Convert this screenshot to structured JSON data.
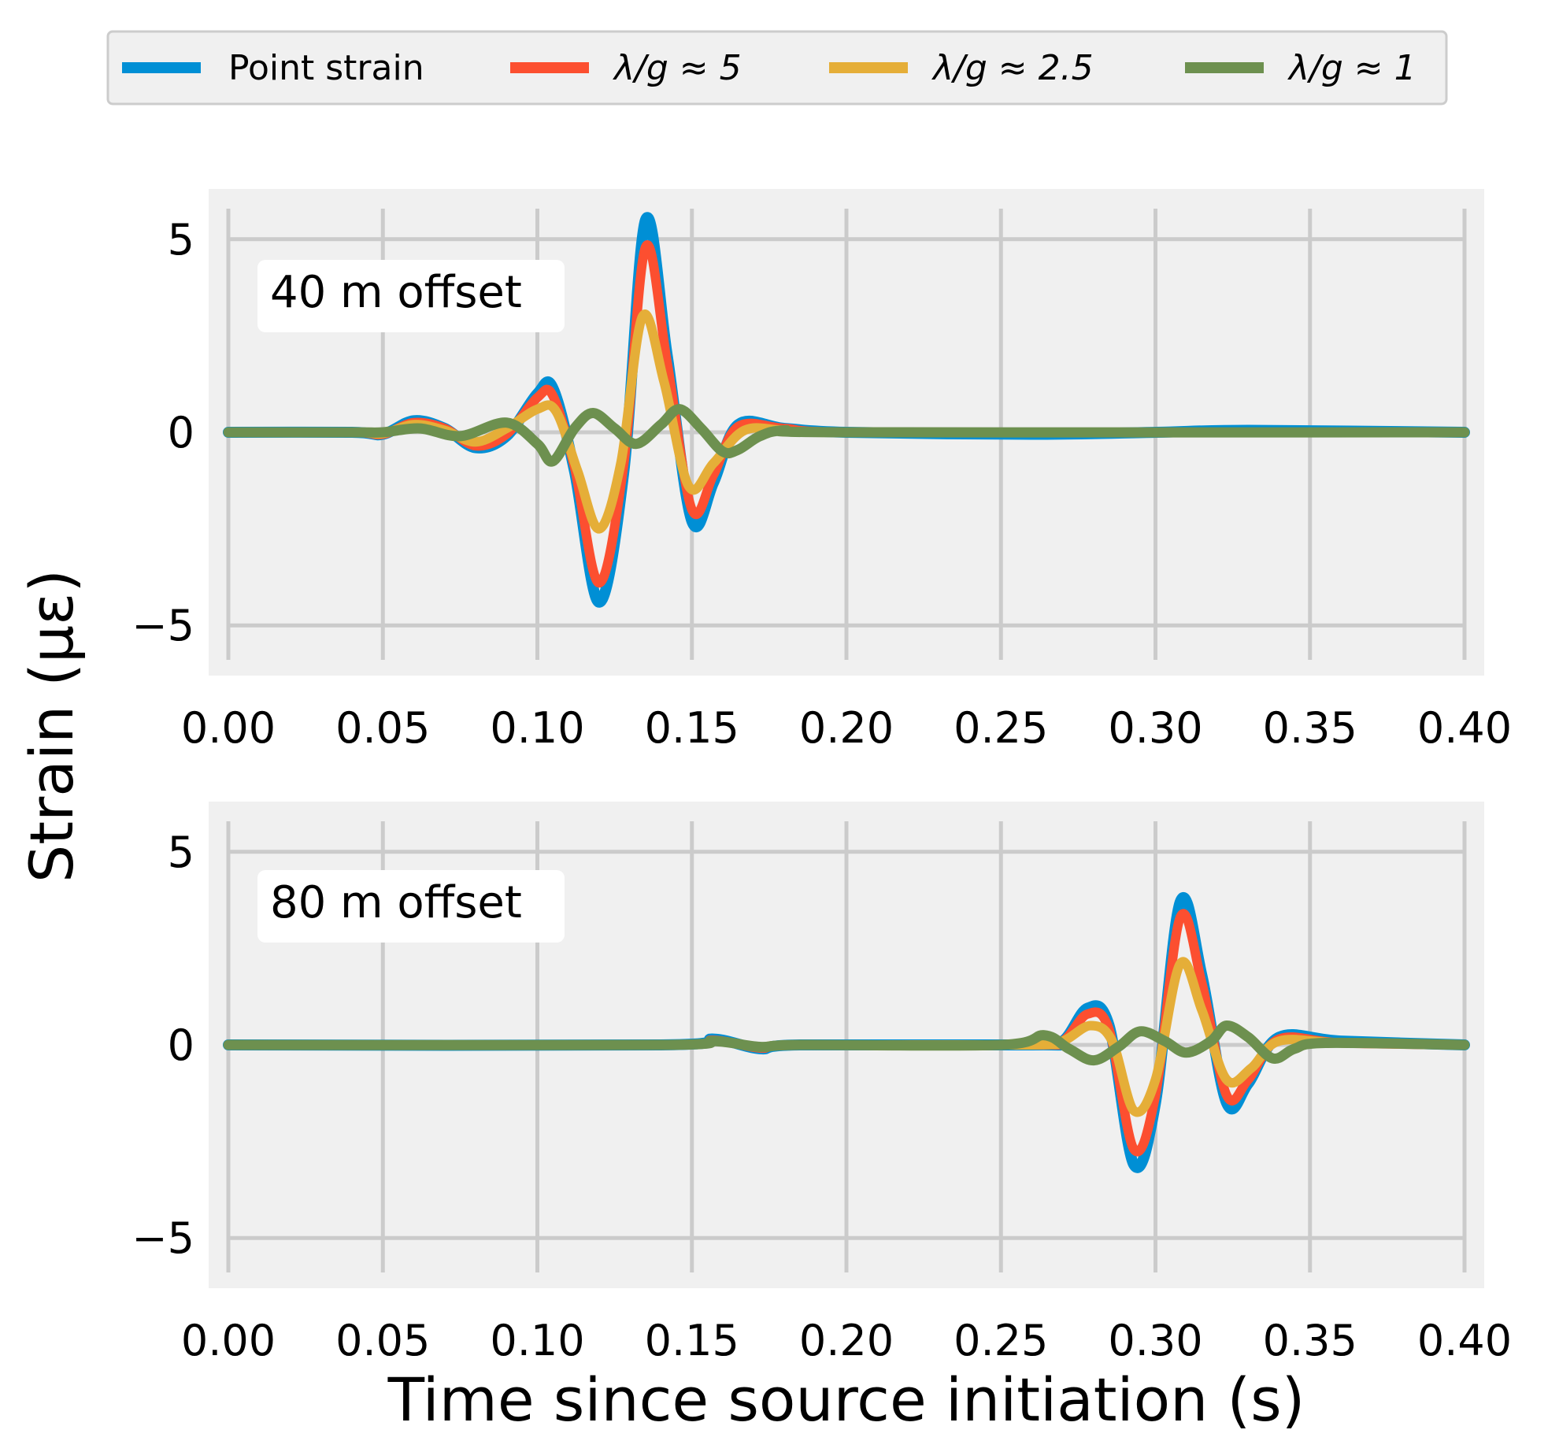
{
  "chart_data": [
    {
      "type": "line",
      "panel": "top",
      "annotation": "40 m offset",
      "xlim": [
        0,
        0.4
      ],
      "ylim": [
        -6.3,
        6.3
      ],
      "xticks": [
        0.0,
        0.05,
        0.1,
        0.15,
        0.2,
        0.25,
        0.3,
        0.35,
        0.4
      ],
      "xtick_labels": [
        "0.00",
        "0.05",
        "0.10",
        "0.15",
        "0.20",
        "0.25",
        "0.30",
        "0.35",
        "0.40"
      ],
      "yticks": [
        5,
        0,
        -5
      ],
      "ytick_labels": [
        "5",
        "0",
        "−5"
      ],
      "grid": true,
      "series": [
        {
          "name": "Point strain",
          "points": [
            [
              0,
              0
            ],
            [
              0.04,
              0
            ],
            [
              0.05,
              -0.05
            ],
            [
              0.06,
              0.3
            ],
            [
              0.07,
              0.1
            ],
            [
              0.08,
              -0.4
            ],
            [
              0.09,
              -0.1
            ],
            [
              0.1,
              1.0
            ],
            [
              0.105,
              1.15
            ],
            [
              0.112,
              -1.0
            ],
            [
              0.12,
              -4.4
            ],
            [
              0.128,
              -1.0
            ],
            [
              0.135,
              5.5
            ],
            [
              0.142,
              2.0
            ],
            [
              0.15,
              -2.3
            ],
            [
              0.157,
              -1.3
            ],
            [
              0.165,
              0.2
            ],
            [
              0.18,
              0.1
            ],
            [
              0.2,
              0
            ],
            [
              0.26,
              -0.05
            ],
            [
              0.3,
              0
            ],
            [
              0.33,
              0.05
            ],
            [
              0.4,
              0
            ]
          ]
        },
        {
          "name": "λ/g ≈ 5",
          "points": [
            [
              0,
              0
            ],
            [
              0.04,
              0
            ],
            [
              0.05,
              -0.05
            ],
            [
              0.06,
              0.25
            ],
            [
              0.07,
              0.1
            ],
            [
              0.08,
              -0.35
            ],
            [
              0.09,
              -0.05
            ],
            [
              0.1,
              0.9
            ],
            [
              0.105,
              0.95
            ],
            [
              0.112,
              -0.9
            ],
            [
              0.12,
              -3.9
            ],
            [
              0.128,
              -0.8
            ],
            [
              0.135,
              4.8
            ],
            [
              0.142,
              1.8
            ],
            [
              0.15,
              -2.0
            ],
            [
              0.157,
              -1.1
            ],
            [
              0.165,
              0.15
            ],
            [
              0.18,
              0.1
            ],
            [
              0.2,
              0
            ],
            [
              0.3,
              0
            ],
            [
              0.4,
              0
            ]
          ]
        },
        {
          "name": "λ/g ≈ 2.5",
          "points": [
            [
              0,
              0
            ],
            [
              0.04,
              0
            ],
            [
              0.05,
              -0.03
            ],
            [
              0.06,
              0.2
            ],
            [
              0.07,
              0.05
            ],
            [
              0.08,
              -0.25
            ],
            [
              0.09,
              0.1
            ],
            [
              0.1,
              0.6
            ],
            [
              0.106,
              0.55
            ],
            [
              0.113,
              -1.0
            ],
            [
              0.12,
              -2.5
            ],
            [
              0.127,
              -0.8
            ],
            [
              0.134,
              3.0
            ],
            [
              0.141,
              1.3
            ],
            [
              0.149,
              -1.4
            ],
            [
              0.157,
              -0.8
            ],
            [
              0.167,
              0.05
            ],
            [
              0.18,
              0.05
            ],
            [
              0.2,
              0
            ],
            [
              0.4,
              0
            ]
          ]
        },
        {
          "name": "λ/g ≈ 1",
          "points": [
            [
              0,
              0
            ],
            [
              0.04,
              0
            ],
            [
              0.05,
              0
            ],
            [
              0.062,
              0.1
            ],
            [
              0.075,
              -0.1
            ],
            [
              0.09,
              0.25
            ],
            [
              0.1,
              -0.3
            ],
            [
              0.105,
              -0.75
            ],
            [
              0.112,
              0.1
            ],
            [
              0.118,
              0.5
            ],
            [
              0.125,
              0.1
            ],
            [
              0.132,
              -0.3
            ],
            [
              0.14,
              0.2
            ],
            [
              0.146,
              0.6
            ],
            [
              0.153,
              0.1
            ],
            [
              0.16,
              -0.5
            ],
            [
              0.165,
              -0.45
            ],
            [
              0.172,
              -0.1
            ],
            [
              0.18,
              0.05
            ],
            [
              0.2,
              0
            ],
            [
              0.4,
              0
            ]
          ]
        }
      ]
    },
    {
      "type": "line",
      "panel": "bottom",
      "annotation": "80 m offset",
      "xlim": [
        0,
        0.4
      ],
      "ylim": [
        -6.3,
        6.3
      ],
      "xticks": [
        0.0,
        0.05,
        0.1,
        0.15,
        0.2,
        0.25,
        0.3,
        0.35,
        0.4
      ],
      "xtick_labels": [
        "0.00",
        "0.05",
        "0.10",
        "0.15",
        "0.20",
        "0.25",
        "0.30",
        "0.35",
        "0.40"
      ],
      "yticks": [
        5,
        0,
        -5
      ],
      "ytick_labels": [
        "5",
        "0",
        "−5"
      ],
      "grid": true,
      "series": [
        {
          "name": "Point strain",
          "points": [
            [
              0,
              0
            ],
            [
              0.14,
              0
            ],
            [
              0.157,
              0.15
            ],
            [
              0.172,
              -0.1
            ],
            [
              0.185,
              0
            ],
            [
              0.26,
              0
            ],
            [
              0.27,
              0.1
            ],
            [
              0.278,
              0.95
            ],
            [
              0.285,
              0.5
            ],
            [
              0.293,
              -3.1
            ],
            [
              0.3,
              -1.5
            ],
            [
              0.308,
              3.7
            ],
            [
              0.315,
              1.8
            ],
            [
              0.323,
              -1.5
            ],
            [
              0.33,
              -1.0
            ],
            [
              0.34,
              0.2
            ],
            [
              0.36,
              0.1
            ],
            [
              0.4,
              0
            ]
          ]
        },
        {
          "name": "λ/g ≈ 5",
          "points": [
            [
              0,
              0
            ],
            [
              0.14,
              0
            ],
            [
              0.157,
              0.12
            ],
            [
              0.172,
              -0.08
            ],
            [
              0.185,
              0
            ],
            [
              0.26,
              0
            ],
            [
              0.27,
              0.1
            ],
            [
              0.278,
              0.8
            ],
            [
              0.285,
              0.4
            ],
            [
              0.293,
              -2.7
            ],
            [
              0.3,
              -1.3
            ],
            [
              0.308,
              3.3
            ],
            [
              0.315,
              1.6
            ],
            [
              0.323,
              -1.3
            ],
            [
              0.33,
              -0.9
            ],
            [
              0.34,
              0.15
            ],
            [
              0.36,
              0.05
            ],
            [
              0.4,
              0
            ]
          ]
        },
        {
          "name": "λ/g ≈ 2.5",
          "points": [
            [
              0,
              0
            ],
            [
              0.14,
              0
            ],
            [
              0.157,
              0.1
            ],
            [
              0.172,
              -0.05
            ],
            [
              0.185,
              0
            ],
            [
              0.26,
              0
            ],
            [
              0.27,
              0.1
            ],
            [
              0.279,
              0.5
            ],
            [
              0.286,
              0.1
            ],
            [
              0.293,
              -1.7
            ],
            [
              0.3,
              -0.9
            ],
            [
              0.308,
              2.1
            ],
            [
              0.315,
              0.9
            ],
            [
              0.323,
              -0.9
            ],
            [
              0.331,
              -0.6
            ],
            [
              0.34,
              0.1
            ],
            [
              0.36,
              0.05
            ],
            [
              0.4,
              0
            ]
          ]
        },
        {
          "name": "λ/g ≈ 1",
          "points": [
            [
              0,
              0
            ],
            [
              0.14,
              0
            ],
            [
              0.157,
              0.1
            ],
            [
              0.172,
              -0.05
            ],
            [
              0.185,
              0
            ],
            [
              0.25,
              0
            ],
            [
              0.264,
              0.25
            ],
            [
              0.272,
              -0.1
            ],
            [
              0.28,
              -0.4
            ],
            [
              0.288,
              -0.05
            ],
            [
              0.295,
              0.35
            ],
            [
              0.303,
              0.1
            ],
            [
              0.31,
              -0.2
            ],
            [
              0.318,
              0.1
            ],
            [
              0.323,
              0.5
            ],
            [
              0.33,
              0.2
            ],
            [
              0.338,
              -0.35
            ],
            [
              0.345,
              -0.1
            ],
            [
              0.355,
              0.05
            ],
            [
              0.4,
              0
            ]
          ]
        }
      ]
    }
  ],
  "shared": {
    "xlabel": "Time since source initiation (s)",
    "ylabel": "Strain (με)",
    "legend": {
      "position": "top-center",
      "entries": [
        {
          "label": "Point strain",
          "color": "#008fd5"
        },
        {
          "label": "λ/g ≈  5",
          "color": "#fc4f30"
        },
        {
          "label": "λ/g ≈  2.5",
          "color": "#e5ae38"
        },
        {
          "label": "λ/g ≈  1",
          "color": "#6d904f"
        }
      ]
    },
    "colors": {
      "background": "#f0f0f0",
      "grid": "#cbcbcb",
      "series": [
        "#008fd5",
        "#fc4f30",
        "#e5ae38",
        "#6d904f"
      ]
    }
  }
}
